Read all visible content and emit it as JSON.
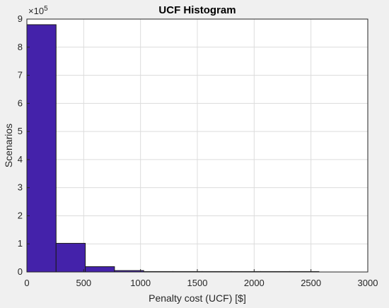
{
  "chart_data": {
    "type": "bar",
    "title": "UCF Histogram",
    "xlabel": "Penalty cost (UCF) [$]",
    "ylabel": "Scenarios",
    "y_exponent_label": "×10",
    "y_exponent_value": "5",
    "y_multiplier": 100000,
    "xlim": [
      0,
      3000
    ],
    "ylim": [
      0,
      9
    ],
    "xticks": [
      "0",
      "500",
      "1000",
      "1500",
      "2000",
      "2500",
      "3000"
    ],
    "yticks": [
      "0",
      "1",
      "2",
      "3",
      "4",
      "5",
      "6",
      "7",
      "8",
      "9"
    ],
    "grid": true,
    "bar_color": "#4422aa",
    "bins": [
      {
        "start": 0,
        "end": 257,
        "value": 8.8
      },
      {
        "start": 257,
        "end": 514,
        "value": 1.02
      },
      {
        "start": 514,
        "end": 771,
        "value": 0.19
      },
      {
        "start": 771,
        "end": 1028,
        "value": 0.05
      },
      {
        "start": 1028,
        "end": 1285,
        "value": 0.01
      },
      {
        "start": 1285,
        "end": 1542,
        "value": 0.005
      },
      {
        "start": 1542,
        "end": 1799,
        "value": 0.003
      },
      {
        "start": 1799,
        "end": 2056,
        "value": 0.002
      },
      {
        "start": 2056,
        "end": 2313,
        "value": 0.0015
      },
      {
        "start": 2313,
        "end": 2570,
        "value": 0.001
      }
    ]
  }
}
